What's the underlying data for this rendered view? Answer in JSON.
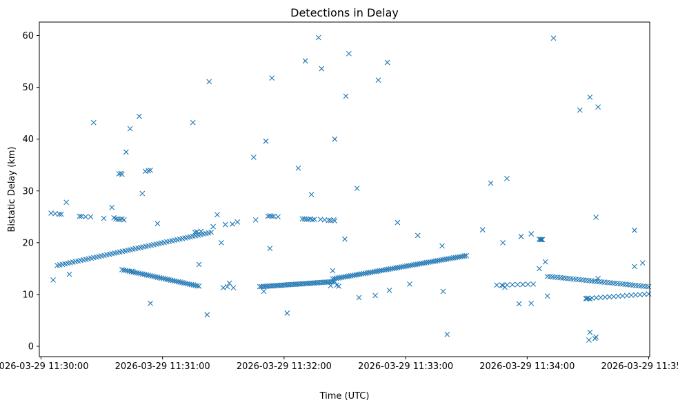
{
  "chart_data": {
    "type": "scatter",
    "title": "Detections in Delay",
    "xlabel": "Time (UTC)",
    "ylabel": "Bistatic Delay (km)",
    "marker": "x",
    "color": "#1f77b4",
    "xlim": [
      -0.83,
      300.5
    ],
    "ylim": [
      -2.0,
      62.6
    ],
    "xticks": [
      0,
      60,
      120,
      180,
      240,
      300
    ],
    "xtick_labels": [
      "2026-03-29 11:30:00",
      "2026-03-29 11:31:00",
      "2026-03-29 11:32:00",
      "2026-03-29 11:33:00",
      "2026-03-29 11:34:00",
      "2026-03-29 11:35:00"
    ],
    "yticks": [
      0,
      10,
      20,
      30,
      40,
      50,
      60
    ],
    "ytick_labels": [
      "0",
      "10",
      "20",
      "30",
      "40",
      "50",
      "60"
    ],
    "x_unit": "seconds after 2026-03-29 11:30:00",
    "segments": [
      {
        "t0": 8.0,
        "t1": 84.0,
        "n": 60,
        "y0": 15.6,
        "y1": 22.0
      },
      {
        "t0": 40.0,
        "t1": 78.0,
        "n": 42,
        "y0": 14.8,
        "y1": 11.6
      },
      {
        "t0": 108.0,
        "t1": 145.0,
        "n": 45,
        "y0": 11.5,
        "y1": 12.5
      },
      {
        "t0": 144.0,
        "t1": 210.0,
        "n": 75,
        "y0": 13.0,
        "y1": 17.5
      },
      {
        "t0": 225.0,
        "t1": 243.0,
        "n": 8,
        "y0": 11.8,
        "y1": 12.0
      },
      {
        "t0": 250.0,
        "t1": 300.0,
        "n": 40,
        "y0": 13.5,
        "y1": 11.5
      },
      {
        "t0": 272.0,
        "t1": 300.0,
        "n": 14,
        "y0": 9.3,
        "y1": 10.1
      }
    ],
    "points": [
      [
        5.0,
        25.7
      ],
      [
        6.0,
        12.8
      ],
      [
        7.0,
        25.6
      ],
      [
        9.0,
        25.5
      ],
      [
        10.0,
        25.5
      ],
      [
        12.5,
        27.8
      ],
      [
        14.0,
        13.9
      ],
      [
        19.0,
        25.1
      ],
      [
        20.0,
        25.1
      ],
      [
        22.0,
        25.0
      ],
      [
        24.5,
        25.0
      ],
      [
        26.0,
        43.2
      ],
      [
        31.0,
        24.7
      ],
      [
        35.0,
        26.8
      ],
      [
        36.0,
        24.8
      ],
      [
        37.0,
        24.6
      ],
      [
        38.0,
        24.5
      ],
      [
        39.0,
        24.5
      ],
      [
        40.0,
        24.6
      ],
      [
        41.0,
        24.4
      ],
      [
        38.5,
        33.3
      ],
      [
        39.5,
        33.4
      ],
      [
        40.0,
        33.2
      ],
      [
        42.0,
        37.5
      ],
      [
        44.0,
        42.0
      ],
      [
        45.0,
        14.5
      ],
      [
        48.5,
        44.4
      ],
      [
        50.0,
        29.5
      ],
      [
        51.5,
        33.8
      ],
      [
        53.0,
        33.9
      ],
      [
        54.0,
        34.0
      ],
      [
        54.0,
        8.3
      ],
      [
        57.5,
        23.7
      ],
      [
        75.0,
        43.2
      ],
      [
        76.0,
        22.0
      ],
      [
        77.0,
        22.1
      ],
      [
        78.0,
        15.8
      ],
      [
        79.0,
        22.2
      ],
      [
        82.0,
        6.1
      ],
      [
        83.0,
        51.1
      ],
      [
        85.0,
        23.1
      ],
      [
        87.0,
        25.4
      ],
      [
        89.0,
        20.0
      ],
      [
        90.0,
        11.3
      ],
      [
        91.0,
        23.5
      ],
      [
        92.0,
        11.5
      ],
      [
        93.0,
        12.2
      ],
      [
        94.5,
        23.6
      ],
      [
        95.0,
        11.3
      ],
      [
        97.0,
        24.0
      ],
      [
        105.0,
        36.5
      ],
      [
        106.0,
        24.4
      ],
      [
        110.0,
        10.6
      ],
      [
        111.0,
        39.6
      ],
      [
        112.0,
        25.1
      ],
      [
        113.0,
        25.2
      ],
      [
        113.0,
        18.9
      ],
      [
        114.0,
        25.1
      ],
      [
        114.0,
        51.8
      ],
      [
        115.0,
        25.1
      ],
      [
        117.0,
        25.0
      ],
      [
        121.5,
        6.4
      ],
      [
        127.0,
        34.4
      ],
      [
        129.0,
        24.6
      ],
      [
        130.0,
        24.6
      ],
      [
        130.5,
        55.1
      ],
      [
        131.0,
        24.5
      ],
      [
        132.0,
        24.5
      ],
      [
        133.0,
        24.6
      ],
      [
        133.5,
        29.3
      ],
      [
        134.0,
        24.4
      ],
      [
        135.0,
        24.5
      ],
      [
        137.0,
        59.6
      ],
      [
        138.0,
        24.5
      ],
      [
        138.5,
        53.6
      ],
      [
        140.0,
        24.4
      ],
      [
        142.0,
        24.3
      ],
      [
        143.0,
        24.3
      ],
      [
        143.0,
        11.7
      ],
      [
        144.0,
        14.6
      ],
      [
        144.5,
        24.4
      ],
      [
        145.0,
        24.2
      ],
      [
        145.0,
        40.0
      ],
      [
        146.0,
        11.8
      ],
      [
        147.0,
        11.6
      ],
      [
        150.0,
        20.7
      ],
      [
        150.5,
        48.3
      ],
      [
        152.0,
        56.5
      ],
      [
        156.0,
        30.5
      ],
      [
        157.0,
        9.4
      ],
      [
        165.0,
        9.8
      ],
      [
        166.5,
        51.4
      ],
      [
        171.0,
        54.8
      ],
      [
        172.0,
        10.8
      ],
      [
        176.0,
        23.9
      ],
      [
        182.0,
        12.0
      ],
      [
        186.0,
        21.4
      ],
      [
        198.0,
        19.4
      ],
      [
        198.5,
        10.6
      ],
      [
        200.5,
        2.3
      ],
      [
        218.0,
        22.5
      ],
      [
        222.0,
        31.5
      ],
      [
        228.0,
        20.0
      ],
      [
        228.0,
        11.7
      ],
      [
        229.0,
        11.4
      ],
      [
        230.0,
        32.4
      ],
      [
        236.0,
        8.2
      ],
      [
        237.0,
        21.2
      ],
      [
        242.0,
        21.7
      ],
      [
        242.0,
        8.3
      ],
      [
        246.0,
        20.7
      ],
      [
        246.5,
        20.6
      ],
      [
        247.0,
        20.6
      ],
      [
        247.5,
        20.6
      ],
      [
        246.0,
        15.0
      ],
      [
        249.0,
        16.3
      ],
      [
        250.0,
        9.7
      ],
      [
        253.0,
        59.5
      ],
      [
        266.0,
        45.6
      ],
      [
        269.0,
        9.2
      ],
      [
        269.5,
        9.2
      ],
      [
        270.0,
        9.3
      ],
      [
        271.0,
        9.1
      ],
      [
        271.0,
        48.1
      ],
      [
        270.5,
        1.2
      ],
      [
        271.0,
        2.7
      ],
      [
        273.5,
        1.5
      ],
      [
        274.0,
        1.8
      ],
      [
        274.0,
        24.9
      ],
      [
        275.0,
        46.2
      ],
      [
        275.0,
        13.1
      ],
      [
        293.0,
        22.4
      ],
      [
        293.0,
        15.4
      ],
      [
        297.0,
        16.1
      ]
    ]
  }
}
